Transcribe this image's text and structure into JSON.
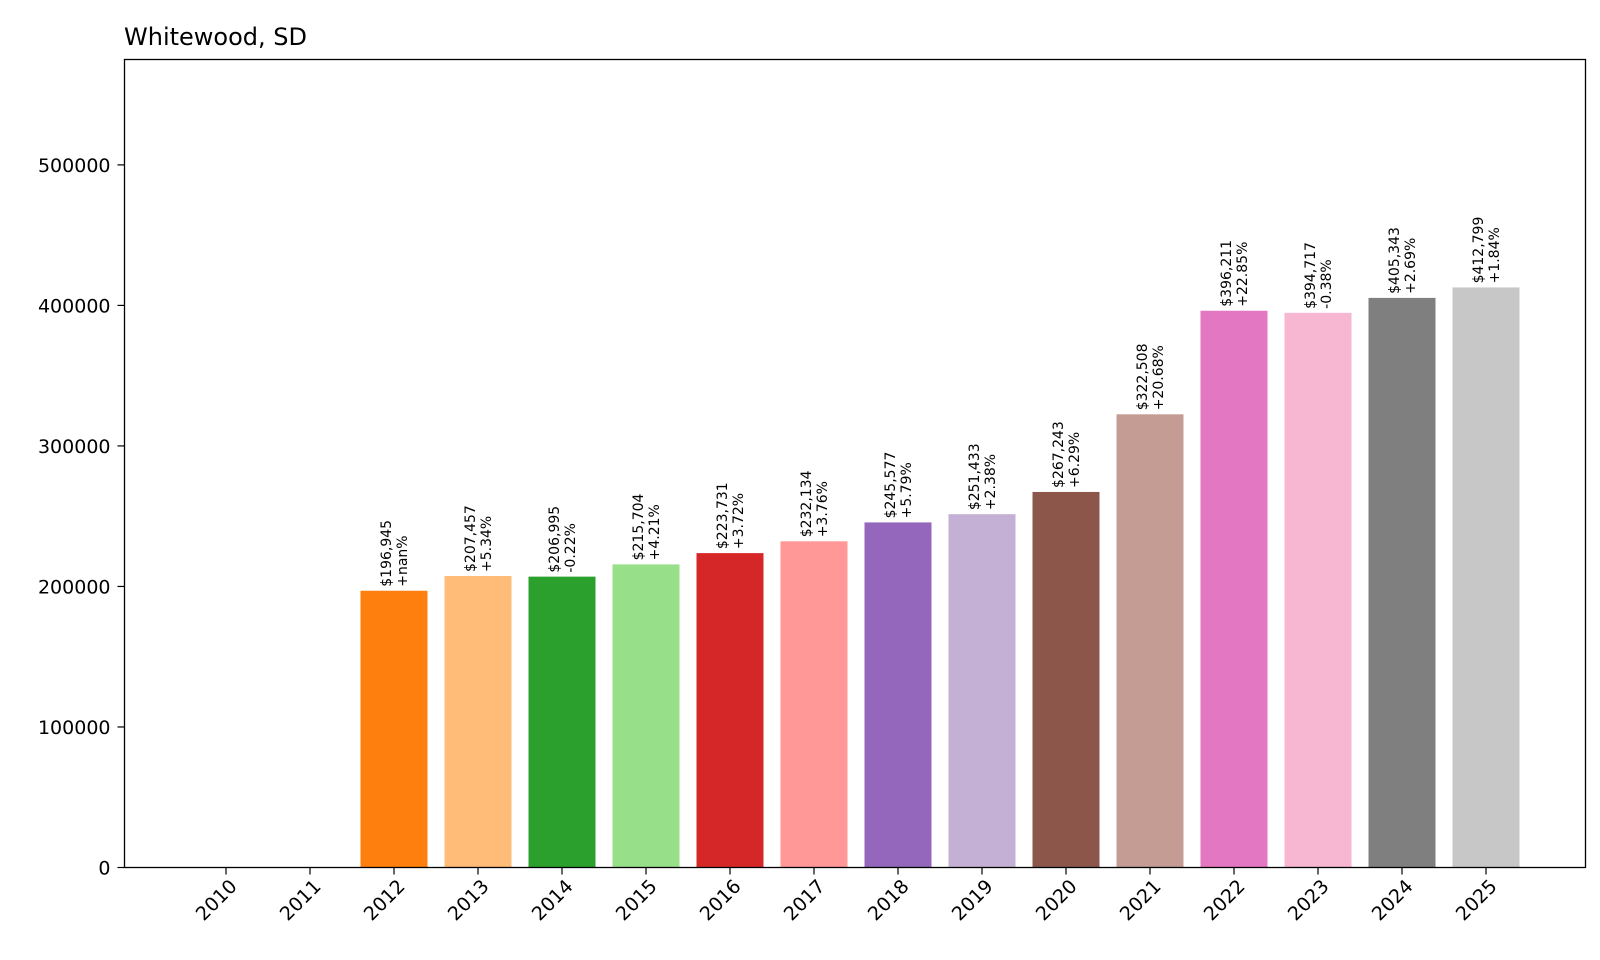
{
  "chart_data": {
    "type": "bar",
    "title": "Whitewood, SD",
    "xlabel": "",
    "ylabel": "",
    "ylim": [
      0,
      575000
    ],
    "yticks": [
      0,
      100000,
      200000,
      300000,
      400000,
      500000
    ],
    "ytick_labels": [
      "0",
      "100000",
      "200000",
      "300000",
      "400000",
      "500000"
    ],
    "grid": false,
    "categories": [
      "2010",
      "2011",
      "2012",
      "2013",
      "2014",
      "2015",
      "2016",
      "2017",
      "2018",
      "2019",
      "2020",
      "2021",
      "2022",
      "2023",
      "2024",
      "2025"
    ],
    "values": [
      0,
      0,
      196945,
      207457,
      206995,
      215704,
      223731,
      232134,
      245577,
      251433,
      267243,
      322508,
      396211,
      394717,
      405343,
      412799
    ],
    "value_labels": [
      "",
      "",
      "$196,945",
      "$207,457",
      "$206,995",
      "$215,704",
      "$223,731",
      "$232,134",
      "$245,577",
      "$251,433",
      "$267,243",
      "$322,508",
      "$396,211",
      "$394,717",
      "$405,343",
      "$412,799"
    ],
    "change_labels": [
      "",
      "",
      "+nan%",
      "+5.34%",
      "-0.22%",
      "+4.21%",
      "+3.72%",
      "+3.76%",
      "+5.79%",
      "+2.38%",
      "+6.29%",
      "+20.68%",
      "+22.85%",
      "-0.38%",
      "+2.69%",
      "+1.84%"
    ],
    "colors": [
      "#1f77b4",
      "#aec7e8",
      "#ff7f0e",
      "#ffbb78",
      "#2ca02c",
      "#98df8a",
      "#d62728",
      "#ff9896",
      "#9467bd",
      "#c5b0d5",
      "#8c564b",
      "#c49c94",
      "#e377c2",
      "#f7b6d2",
      "#7f7f7f",
      "#c7c7c7"
    ]
  }
}
